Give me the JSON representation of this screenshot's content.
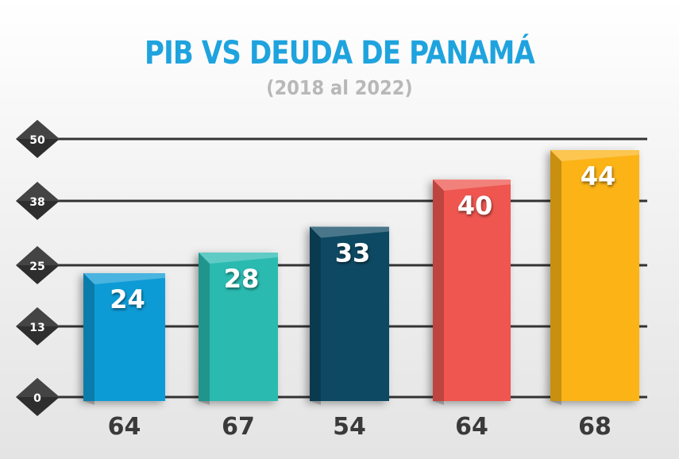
{
  "chart_data": {
    "type": "bar",
    "title": "PIB VS DEUDA DE PANAMÁ",
    "subtitle": "(2018 al 2022)",
    "categories": [
      "64",
      "67",
      "54",
      "64",
      "68"
    ],
    "values": [
      24,
      28,
      33,
      40,
      44
    ],
    "y_ticks": [
      "0",
      "13",
      "25",
      "38",
      "50"
    ],
    "ylim": [
      0,
      50
    ],
    "grid": true,
    "colors": [
      "#0a9bd6",
      "#2bbab0",
      "#0b4a63",
      "#ee574f",
      "#fbb316"
    ]
  }
}
